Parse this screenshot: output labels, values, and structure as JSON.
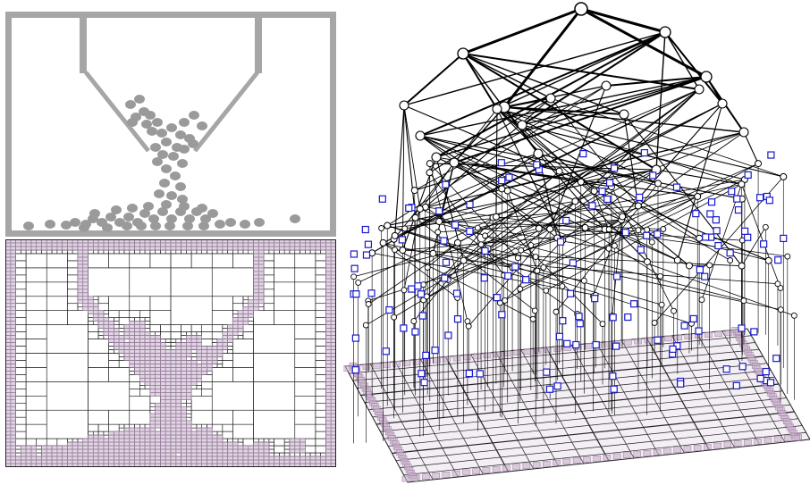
{
  "colors": {
    "walls": "#a6a6a6",
    "particles": "#9a9a9a",
    "quadtree_lines": "#222222",
    "cell_fill": "#c9b3cc",
    "cell_edge": "#9a7fa0",
    "tree_edges": "#000000",
    "leaf_markers": "#1a1acc",
    "background": "#ffffff"
  },
  "panels": {
    "top": "granular-hopper-simulation",
    "bottom": "adaptive-quadtree-decomposition",
    "right": "3d-quadtree-hierarchy"
  }
}
